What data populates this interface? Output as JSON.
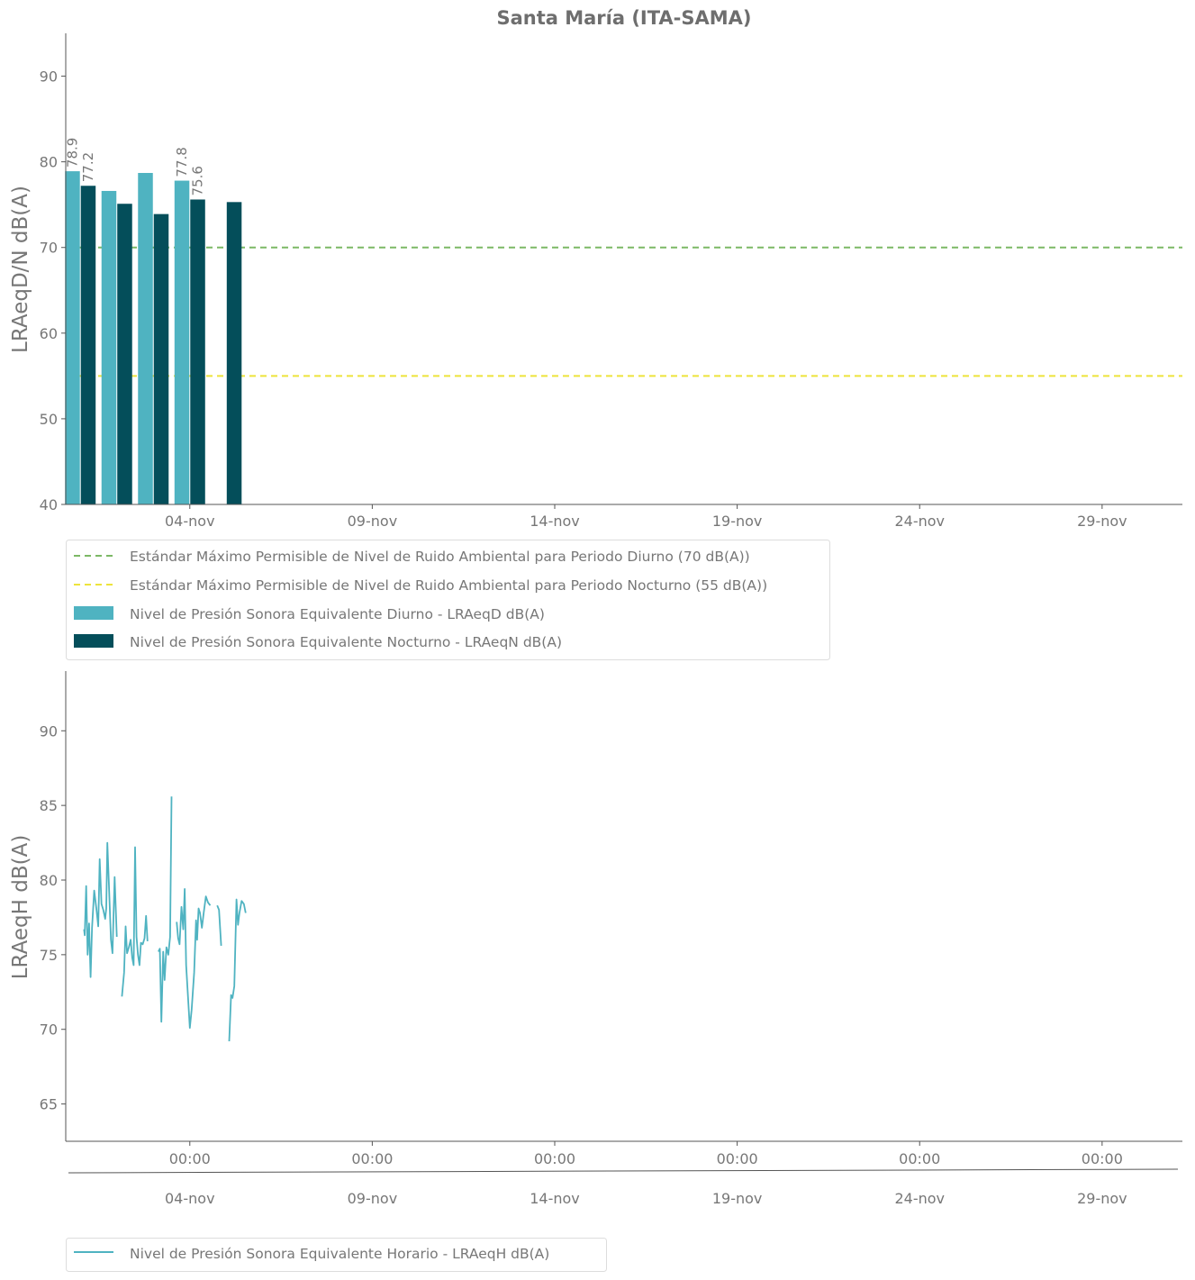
{
  "title": "Santa María (ITA-SAMA)",
  "colors": {
    "day": "#4fb3c1",
    "night": "#044e5a",
    "std_day": "#7cb865",
    "std_night": "#ede33b",
    "hourly": "#4fb3c1",
    "text": "#777777"
  },
  "chart_data": [
    {
      "type": "bar",
      "title": "Santa María (ITA-SAMA)",
      "ylabel": "LRAeqD/N dB(A)",
      "xlabel": "",
      "ylim": [
        40,
        95
      ],
      "yticks": [
        40,
        50,
        60,
        70,
        80,
        90
      ],
      "xticks": [
        "04-nov",
        "09-nov",
        "14-nov",
        "19-nov",
        "24-nov",
        "29-nov"
      ],
      "xlim_days": [
        0.6,
        31.2
      ],
      "tick_days": [
        4,
        9,
        14,
        19,
        24,
        29
      ],
      "categories": [
        "01-nov",
        "02-nov",
        "03-nov",
        "04-nov",
        "05-nov"
      ],
      "series": [
        {
          "name": "Nivel de Presión Sonora Equivalente Diurno - LRAeqD dB(A)",
          "key": "day",
          "values": [
            78.9,
            76.6,
            78.7,
            77.8,
            null
          ]
        },
        {
          "name": "Nivel de Presión Sonora Equivalente Nocturno - LRAeqN dB(A)",
          "key": "night",
          "values": [
            77.2,
            75.1,
            73.9,
            75.6,
            75.3
          ]
        }
      ],
      "data_labels": [
        {
          "text": "78.9",
          "category": "01-nov",
          "series": "day"
        },
        {
          "text": "77.2",
          "category": "01-nov",
          "series": "night"
        },
        {
          "text": "77.8",
          "category": "04-nov",
          "series": "day"
        },
        {
          "text": "75.6",
          "category": "04-nov",
          "series": "night"
        }
      ],
      "reference_lines": [
        {
          "name": "Estándar Máximo Permisible de Nivel de Ruido Ambiental para Periodo Diurno (70 dB(A))",
          "value": 70,
          "key": "std_day"
        },
        {
          "name": "Estándar Máximo Permisible de Nivel de Ruido Ambiental para Periodo Nocturno (55 dB(A))",
          "value": 55,
          "key": "std_night"
        }
      ],
      "legend": "bottom-left",
      "grid": false
    },
    {
      "type": "line",
      "ylabel": "LRAeqH dB(A)",
      "xlabel": "",
      "ylim": [
        62.5,
        94
      ],
      "yticks": [
        65,
        70,
        75,
        80,
        85,
        90
      ],
      "xticks": [
        "00:00",
        "00:00",
        "00:00",
        "00:00",
        "00:00",
        "00:00"
      ],
      "xticks_secondary": [
        "04-nov",
        "09-nov",
        "14-nov",
        "19-nov",
        "24-nov",
        "29-nov"
      ],
      "xlim_days": [
        0.6,
        31.2
      ],
      "tick_days": [
        4,
        9,
        14,
        19,
        24,
        29
      ],
      "legend": "bottom-left",
      "grid": false,
      "series": [
        {
          "name": "Nivel de Presión Sonora Equivalente Horario - LRAeqH dB(A)",
          "key": "hourly",
          "points": [
            [
              1.1,
              76.7
            ],
            [
              1.12,
              76.3
            ],
            [
              1.16,
              79.6
            ],
            [
              1.2,
              75.0
            ],
            [
              1.24,
              77.1
            ],
            [
              1.28,
              73.5
            ],
            [
              1.32,
              76.8
            ],
            [
              1.38,
              79.3
            ],
            [
              1.44,
              78.1
            ],
            [
              1.49,
              76.9
            ],
            [
              1.53,
              81.4
            ],
            [
              1.58,
              78.4
            ],
            [
              1.63,
              78.0
            ],
            [
              1.68,
              77.4
            ],
            [
              1.71,
              78.1
            ],
            [
              1.74,
              82.5
            ],
            [
              1.79,
              79.3
            ],
            [
              1.84,
              76.0
            ],
            [
              1.88,
              75.1
            ],
            [
              1.94,
              80.2
            ],
            [
              1.97,
              78.2
            ],
            [
              2.0,
              76.2
            ],
            null,
            [
              2.14,
              72.2
            ],
            [
              2.2,
              73.8
            ],
            [
              2.24,
              76.9
            ],
            [
              2.28,
              75.1
            ],
            [
              2.33,
              75.5
            ],
            [
              2.38,
              76.0
            ],
            [
              2.42,
              74.8
            ],
            [
              2.46,
              74.3
            ],
            [
              2.5,
              82.2
            ],
            [
              2.54,
              76.2
            ],
            [
              2.58,
              75.0
            ],
            [
              2.62,
              74.3
            ],
            [
              2.66,
              75.8
            ],
            [
              2.71,
              75.7
            ],
            [
              2.76,
              76.1
            ],
            [
              2.8,
              77.6
            ],
            [
              2.84,
              75.9
            ],
            null,
            [
              3.14,
              75.2
            ],
            [
              3.18,
              75.4
            ],
            [
              3.22,
              70.5
            ],
            [
              3.27,
              75.2
            ],
            [
              3.31,
              73.3
            ],
            [
              3.36,
              75.5
            ],
            [
              3.41,
              75.0
            ],
            [
              3.46,
              76.2
            ],
            [
              3.5,
              85.6
            ],
            null,
            [
              3.64,
              77.2
            ],
            [
              3.68,
              76.1
            ],
            [
              3.72,
              75.7
            ],
            [
              3.77,
              78.2
            ],
            [
              3.82,
              76.7
            ],
            [
              3.86,
              79.4
            ],
            [
              3.9,
              74.3
            ],
            [
              4.0,
              70.1
            ],
            [
              4.05,
              71.3
            ],
            [
              4.12,
              73.8
            ],
            [
              4.17,
              77.3
            ],
            [
              4.2,
              76.0
            ],
            [
              4.24,
              78.1
            ],
            [
              4.28,
              77.8
            ],
            [
              4.33,
              76.8
            ],
            [
              4.38,
              77.8
            ],
            [
              4.44,
              78.9
            ],
            [
              4.5,
              78.5
            ],
            [
              4.56,
              78.3
            ],
            null,
            [
              4.75,
              78.3
            ],
            [
              4.8,
              78.0
            ],
            [
              4.86,
              75.6
            ],
            null,
            [
              5.08,
              69.2
            ],
            [
              5.13,
              72.3
            ],
            [
              5.17,
              72.1
            ],
            [
              5.22,
              72.9
            ],
            [
              5.28,
              78.7
            ],
            [
              5.32,
              77.0
            ],
            [
              5.36,
              77.8
            ],
            [
              5.42,
              78.6
            ],
            [
              5.48,
              78.4
            ],
            [
              5.53,
              77.8
            ]
          ]
        }
      ]
    }
  ]
}
